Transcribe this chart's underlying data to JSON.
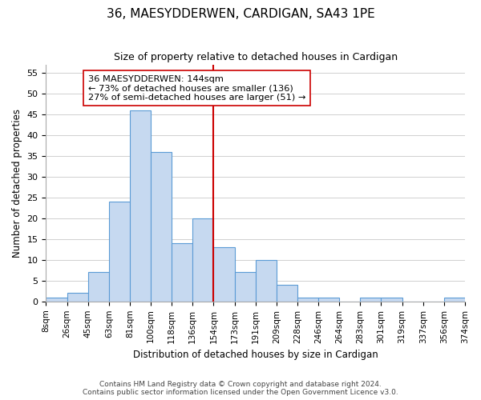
{
  "title": "36, MAESYDDERWEN, CARDIGAN, SA43 1PE",
  "subtitle": "Size of property relative to detached houses in Cardigan",
  "xlabel": "Distribution of detached houses by size in Cardigan",
  "ylabel": "Number of detached properties",
  "bin_edges": [
    "8sqm",
    "26sqm",
    "45sqm",
    "63sqm",
    "81sqm",
    "100sqm",
    "118sqm",
    "136sqm",
    "154sqm",
    "173sqm",
    "191sqm",
    "209sqm",
    "228sqm",
    "246sqm",
    "264sqm",
    "283sqm",
    "301sqm",
    "319sqm",
    "337sqm",
    "356sqm",
    "374sqm"
  ],
  "bar_heights": [
    1,
    2,
    7,
    24,
    46,
    36,
    14,
    20,
    13,
    7,
    10,
    4,
    1,
    1,
    0,
    1,
    1,
    0,
    0,
    1
  ],
  "bar_color": "#c6d9f0",
  "bar_edge_color": "#5b9bd5",
  "vline_x": 7.5,
  "vline_color": "#cc0000",
  "annotation_title": "36 MAESYDDERWEN: 144sqm",
  "annotation_line1": "← 73% of detached houses are smaller (136)",
  "annotation_line2": "27% of semi-detached houses are larger (51) →",
  "annotation_box_color": "#ffffff",
  "annotation_box_edge": "#cc0000",
  "ylim": [
    0,
    57
  ],
  "yticks": [
    0,
    5,
    10,
    15,
    20,
    25,
    30,
    35,
    40,
    45,
    50,
    55
  ],
  "footnote1": "Contains HM Land Registry data © Crown copyright and database right 2024.",
  "footnote2": "Contains public sector information licensed under the Open Government Licence v3.0.",
  "background_color": "#ffffff",
  "grid_color": "#d0d0d0"
}
